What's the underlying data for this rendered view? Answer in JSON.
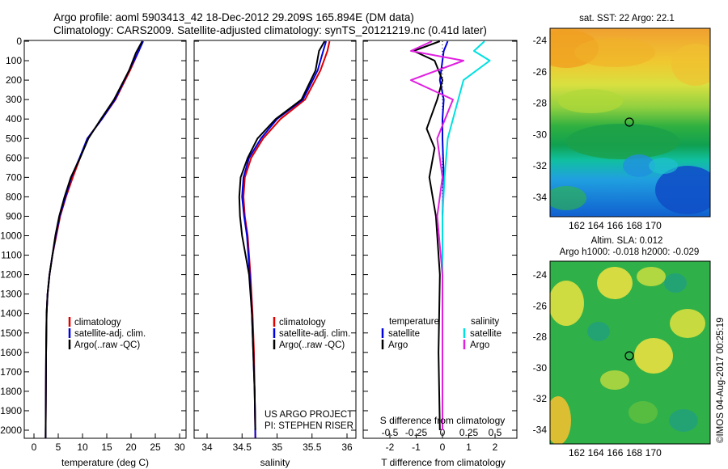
{
  "title_line1": "Argo profile: aoml 5903413_42 18-Dec-2012 29.209S 165.894E (DM data)",
  "title_line2": "Climatology: CARS2009. Satellite-adjusted climatology: synTS_20121219.nc (0.41d later)",
  "sst_title": "sat. SST: 22 Argo: 22.1",
  "sla_title1": "Altim. SLA: 0.012",
  "sla_title2": "Argo h1000: -0.018 h2000: -0.029",
  "timestamp": "©IMOS 04-Aug-2017 00:25:19",
  "colors": {
    "climatology": "#e00000",
    "satellite": "#0000e0",
    "argo": "#000000",
    "argo_sal": "#e020e0",
    "sat_sal": "#00e0e0"
  },
  "depth_ticks": [
    "0",
    "100",
    "200",
    "300",
    "400",
    "500",
    "600",
    "700",
    "800",
    "900",
    "1000",
    "1100",
    "1200",
    "1300",
    "1400",
    "1500",
    "1600",
    "1700",
    "1800",
    "1900",
    "2000"
  ],
  "panels": {
    "temperature": {
      "xlabel": "temperature (deg C)",
      "xticks": [
        "0",
        "5",
        "10",
        "15",
        "20",
        "25",
        "30"
      ],
      "legend": [
        "climatology",
        "satellite-adj. clim.",
        "Argo(..raw -QC)"
      ]
    },
    "salinity": {
      "xlabel": "salinity",
      "xticks": [
        "34",
        "34.5",
        "35",
        "35.5",
        "36"
      ],
      "legend": [
        "climatology",
        "satellite-adj. clim.",
        "Argo(..raw -QC)"
      ],
      "project_line1": "US ARGO PROJECT",
      "project_line2": "PI: STEPHEN RISER"
    },
    "difference": {
      "xlabel_bottom": "T difference from climatology",
      "xlabel_top": "S difference from climatology",
      "xticks_bottom": [
        "-2",
        "-1",
        "0",
        "1",
        "2"
      ],
      "xticks_top": [
        "-0.5",
        "-0.25",
        "0",
        "0.25",
        "0.5"
      ],
      "legend_t_head": "temperature",
      "legend_s_head": "salinity",
      "legend_t": [
        "satellite",
        "Argo"
      ],
      "legend_s": [
        "satellite",
        "Argo"
      ]
    }
  },
  "maps": {
    "lon_ticks": [
      "162",
      "164",
      "166",
      "168",
      "170"
    ],
    "lat_ticks": [
      "-24",
      "-26",
      "-28",
      "-30",
      "-32",
      "-34"
    ]
  },
  "chart_data": [
    {
      "type": "line",
      "ylabel": "",
      "xlabel": "temperature (deg C)",
      "xlim": [
        -1,
        31
      ],
      "ylim": [
        2050,
        0
      ],
      "series": [
        {
          "name": "climatology",
          "x": [
            22.3,
            21.6,
            19.8,
            16.8,
            14.0,
            11.0,
            9.5,
            8.0,
            6.6,
            5.4,
            4.6,
            3.8,
            3.2,
            2.8,
            2.6,
            2.5,
            2.4
          ],
          "y": [
            0,
            50,
            150,
            300,
            400,
            500,
            600,
            700,
            800,
            900,
            1000,
            1100,
            1200,
            1300,
            1400,
            1600,
            2040
          ]
        },
        {
          "name": "satellite-adj. clim.",
          "x": [
            22.5,
            21.6,
            19.6,
            16.7,
            14.0,
            11.0,
            9.4,
            7.7,
            6.5,
            5.3,
            4.5,
            3.8,
            3.2,
            2.8,
            2.6,
            2.5,
            2.4
          ],
          "y": [
            0,
            50,
            150,
            300,
            400,
            500,
            600,
            700,
            800,
            900,
            1000,
            1100,
            1200,
            1300,
            1400,
            1600,
            2040
          ]
        },
        {
          "name": "Argo(..raw -QC)",
          "x": [
            22.3,
            21.0,
            19.6,
            16.5,
            13.8,
            11.2,
            9.5,
            7.6,
            6.3,
            5.2,
            4.4,
            3.8,
            3.2,
            2.8,
            2.6,
            2.5,
            2.4
          ],
          "y": [
            0,
            60,
            150,
            300,
            400,
            500,
            600,
            700,
            800,
            900,
            1000,
            1100,
            1200,
            1300,
            1400,
            1600,
            2040
          ]
        }
      ]
    },
    {
      "type": "line",
      "xlabel": "salinity",
      "xlim": [
        33.8,
        36.1
      ],
      "ylim": [
        2050,
        0
      ],
      "series": [
        {
          "name": "climatology",
          "x": [
            35.75,
            35.72,
            35.62,
            35.4,
            35.05,
            34.8,
            34.63,
            34.54,
            34.52,
            34.54,
            34.58,
            34.62,
            34.65,
            34.67,
            34.68,
            34.69
          ],
          "y": [
            0,
            50,
            150,
            300,
            400,
            500,
            600,
            700,
            800,
            900,
            1000,
            1200,
            1400,
            1600,
            1800,
            2040
          ]
        },
        {
          "name": "satellite-adj. clim.",
          "x": [
            35.7,
            35.66,
            35.58,
            35.37,
            35.0,
            34.77,
            34.6,
            34.52,
            34.5,
            34.53,
            34.57,
            34.61,
            34.64,
            34.66,
            34.68,
            34.69
          ],
          "y": [
            0,
            50,
            150,
            300,
            400,
            500,
            600,
            700,
            800,
            900,
            1000,
            1200,
            1400,
            1600,
            1800,
            2040
          ]
        },
        {
          "name": "Argo(..raw -QC)",
          "x": [
            35.68,
            35.6,
            35.55,
            35.35,
            34.98,
            34.72,
            34.58,
            34.48,
            34.46,
            34.47,
            34.5,
            34.6,
            34.64,
            34.66,
            34.68,
            34.69
          ],
          "y": [
            0,
            50,
            150,
            300,
            400,
            500,
            600,
            700,
            800,
            900,
            1000,
            1200,
            1400,
            1600,
            1800,
            2000
          ]
        }
      ]
    },
    {
      "type": "line",
      "xlabel": "T difference from climatology",
      "xlim": [
        -2.5,
        3.0
      ],
      "ylim": [
        2050,
        0
      ],
      "series": [
        {
          "name": "temperature satellite",
          "x": [
            0.2,
            0.05,
            0.0,
            -0.1,
            0.05,
            0.0,
            0.0,
            0.05,
            0.0,
            0.0,
            0.0,
            0.0
          ],
          "y": [
            0,
            50,
            100,
            200,
            300,
            400,
            500,
            700,
            900,
            1200,
            1600,
            2000
          ]
        },
        {
          "name": "temperature Argo",
          "x": [
            -0.1,
            -1.1,
            -0.3,
            0.0,
            -0.2,
            -0.6,
            -0.3,
            -0.5,
            -0.25,
            -0.1,
            -0.15,
            -0.1
          ],
          "y": [
            0,
            50,
            100,
            200,
            300,
            450,
            550,
            700,
            900,
            1200,
            1600,
            2000
          ]
        },
        {
          "name": "salinity satellite",
          "x": [
            0.4,
            0.3,
            0.45,
            0.2,
            0.15,
            0.05,
            0.02,
            0.0,
            0.0,
            0.0
          ],
          "y": [
            0,
            50,
            100,
            200,
            300,
            500,
            700,
            900,
            1200,
            2000
          ]
        },
        {
          "name": "salinity Argo",
          "x": [
            -0.1,
            -0.3,
            0.2,
            -0.3,
            0.1,
            -0.05,
            0.0,
            -0.05,
            0.0,
            0.0
          ],
          "y": [
            0,
            50,
            100,
            200,
            300,
            500,
            700,
            900,
            1200,
            2000
          ]
        }
      ]
    }
  ]
}
